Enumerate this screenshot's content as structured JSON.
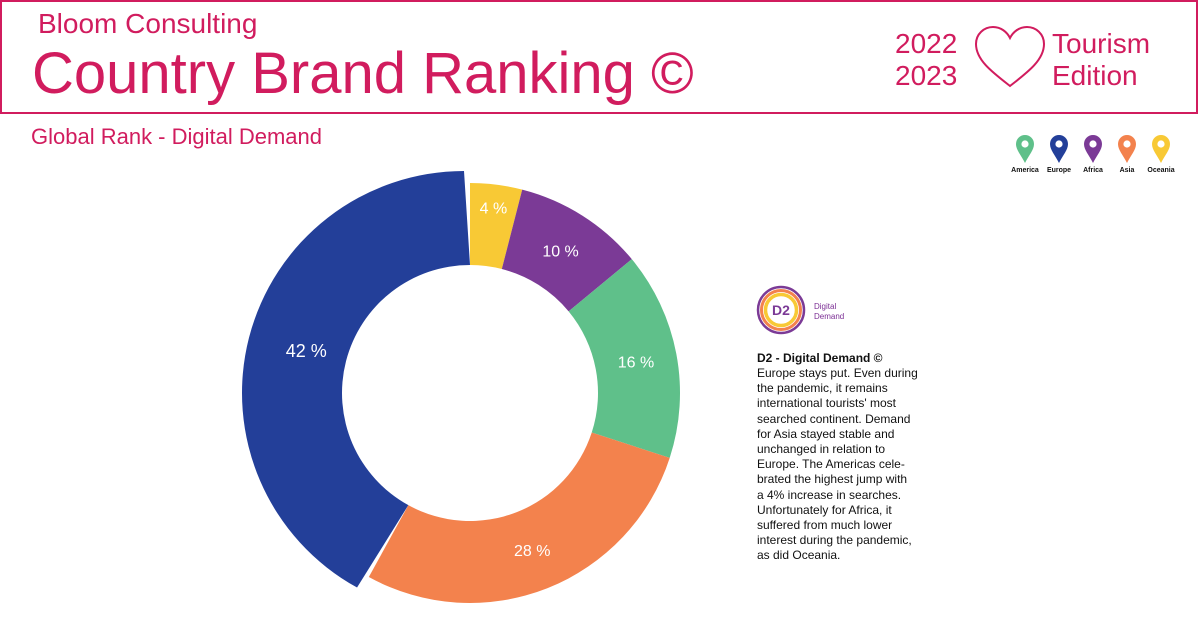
{
  "header": {
    "brand": "Bloom Consulting",
    "title": "Country Brand Ranking ©",
    "year_1": "2022",
    "year_2": "2023",
    "edition_1": "Tourism",
    "edition_2": "Edition",
    "accent_color": "#d11c5e"
  },
  "subtitle": "Global Rank - Digital Demand",
  "legend": {
    "items": [
      {
        "label": "America",
        "color": "#5fc08a",
        "icon": "map-pin-icon"
      },
      {
        "label": "Europe",
        "color": "#233f99",
        "icon": "map-pin-icon"
      },
      {
        "label": "Africa",
        "color": "#7b3a96",
        "icon": "map-pin-icon"
      },
      {
        "label": "Asia",
        "color": "#f3824d",
        "icon": "map-pin-icon"
      },
      {
        "label": "Oceania",
        "color": "#f8c935",
        "icon": "map-pin-icon"
      }
    ]
  },
  "chart_data": {
    "type": "pie",
    "donut": true,
    "categories": [
      "Oceania",
      "Africa",
      "America",
      "Asia",
      "Europe"
    ],
    "values": [
      4,
      10,
      16,
      28,
      42
    ],
    "labels": [
      "4 %",
      "10 %",
      "16 %",
      "28 %",
      "42 %"
    ],
    "colors": [
      "#f8c935",
      "#7b3a96",
      "#5fc08a",
      "#f3824d",
      "#233f99"
    ],
    "title": "Global Rank - Digital Demand",
    "legend_position": "top-right"
  },
  "d2": {
    "logo_text": "D2",
    "label_1": "Digital",
    "label_2": "Demand",
    "title": "D2 - Digital Demand ©",
    "lines": [
      "Europe stays put. Even during",
      "the pandemic, it remains",
      "international tourists' most",
      "searched continent. Demand",
      "for Asia stayed stable and",
      "unchanged in relation to",
      "Europe. The Americas cele-",
      "brated the highest jump with",
      "a 4% increase in searches.",
      "Unfortunately for Africa, it",
      "suffered from much lower",
      "interest during the pandemic,",
      "as did Oceania."
    ]
  }
}
